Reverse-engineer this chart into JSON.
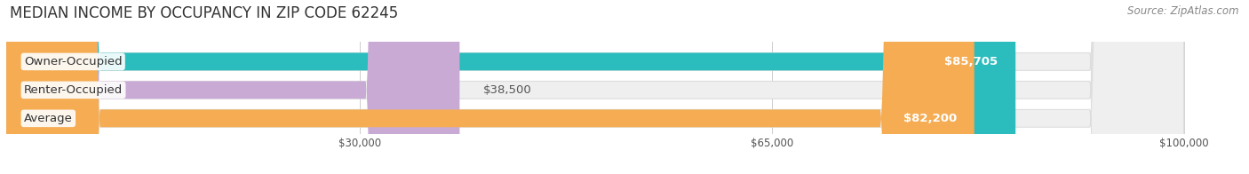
{
  "title": "MEDIAN INCOME BY OCCUPANCY IN ZIP CODE 62245",
  "source": "Source: ZipAtlas.com",
  "categories": [
    "Owner-Occupied",
    "Renter-Occupied",
    "Average"
  ],
  "values": [
    85705,
    38500,
    82200
  ],
  "labels": [
    "$85,705",
    "$38,500",
    "$82,200"
  ],
  "bar_colors": [
    "#2bbdbd",
    "#c9aad5",
    "#f5ac52"
  ],
  "bar_bg_color": "#efefef",
  "bar_border_color": "#dddddd",
  "xlim_max": 105000,
  "axis_max": 100000,
  "xticks": [
    30000,
    65000,
    100000
  ],
  "xtick_labels": [
    "$30,000",
    "$65,000",
    "$100,000"
  ],
  "title_fontsize": 12,
  "source_fontsize": 8.5,
  "bar_height": 0.62,
  "label_inside_fontsize": 9.5,
  "label_outside_fontsize": 9.5,
  "category_fontsize": 9.5,
  "label_inside_threshold": 50000,
  "grid_color": "#cccccc",
  "grid_linewidth": 0.7
}
